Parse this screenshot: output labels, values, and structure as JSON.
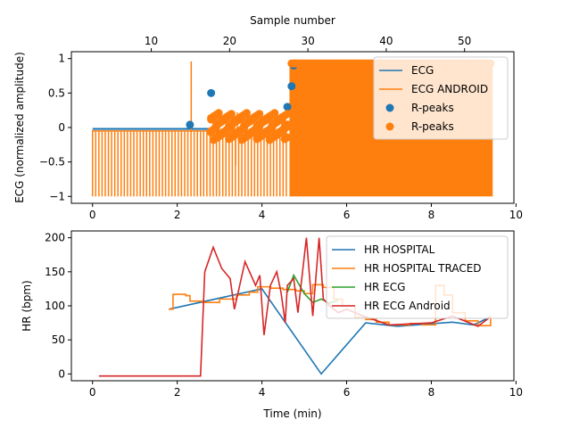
{
  "chart_data": [
    {
      "type": "line",
      "top_axis_label": "Sample number",
      "top_ticks": [
        10,
        20,
        30,
        40,
        50
      ],
      "top_lim": [
        -0.2,
        56.3
      ],
      "xlabel": "",
      "ylabel": "ECG (normalized amplitude)",
      "xlim": [
        -0.5,
        9.95
      ],
      "ylim": [
        -1.1,
        1.1
      ],
      "x_ticks": [
        0,
        2,
        4,
        6,
        8,
        10
      ],
      "y_ticks": [
        -1.0,
        -0.5,
        0.0,
        0.5,
        1.0
      ],
      "legend_position": "top-right",
      "colors": {
        "blue": "#1f77b4",
        "orange": "#ff7f0e"
      },
      "series": [
        {
          "name": "ECG",
          "kind": "line",
          "color": "#1f77b4",
          "points": [
            [
              0,
              -0.02
            ],
            [
              2.8,
              -0.02
            ]
          ]
        },
        {
          "name": "ECG ANDROID",
          "kind": "line",
          "color": "#ff7f0e",
          "spikes_region": {
            "x_start": 0,
            "x_end": 4.6,
            "step": 0.075,
            "baseline": -0.05,
            "low": -1.0
          },
          "dense_region": {
            "x_start": 4.65,
            "x_end": 9.45,
            "low": -1.0,
            "high": 0.95
          },
          "outliers": [
            [
              2.33,
              0.96
            ],
            [
              3.38,
              -0.55
            ],
            [
              3.42,
              0.22
            ],
            [
              4.0,
              0.08
            ]
          ]
        },
        {
          "name": "R-peaks",
          "kind": "scatter",
          "color": "#1f77b4",
          "points": [
            [
              2.8,
              0.5
            ],
            [
              2.3,
              0.04
            ],
            [
              4.6,
              0.3
            ],
            [
              4.7,
              0.6
            ],
            [
              4.75,
              0.9
            ]
          ]
        },
        {
          "name": "R-peaks",
          "kind": "scatter",
          "color": "#ff7f0e",
          "band": {
            "x_start": 2.8,
            "x_end": 4.6,
            "low": -0.25,
            "high": 0.2
          },
          "top_band": {
            "x_start": 4.7,
            "x_end": 9.45,
            "y": 0.93
          }
        }
      ]
    },
    {
      "type": "line",
      "xlabel": "Time (min)",
      "ylabel": "HR (bpm)",
      "xlim": [
        -0.5,
        9.95
      ],
      "ylim": [
        -10,
        210
      ],
      "x_ticks": [
        0,
        2,
        4,
        6,
        8,
        10
      ],
      "y_ticks": [
        0,
        50,
        100,
        150,
        200
      ],
      "legend_position": "top-right",
      "series": [
        {
          "name": "HR HOSPITAL",
          "color": "#1f77b4",
          "points": [
            [
              1.8,
              95
            ],
            [
              4.0,
              125
            ],
            [
              5.4,
              0
            ],
            [
              6.45,
              75
            ],
            [
              7.2,
              70
            ],
            [
              8.5,
              76
            ],
            [
              9.0,
              72
            ],
            [
              9.4,
              84
            ]
          ]
        },
        {
          "name": "HR HOSPITAL TRACED",
          "color": "#ff7f0e",
          "step": true,
          "points": [
            [
              1.8,
              95
            ],
            [
              1.9,
              117
            ],
            [
              2.2,
              115
            ],
            [
              2.3,
              107
            ],
            [
              2.6,
              105
            ],
            [
              3.0,
              110
            ],
            [
              3.4,
              116
            ],
            [
              3.7,
              120
            ],
            [
              3.9,
              128
            ],
            [
              4.2,
              126
            ],
            [
              4.5,
              124
            ],
            [
              4.8,
              122
            ],
            [
              5.0,
              118
            ],
            [
              5.2,
              131
            ],
            [
              5.45,
              127
            ],
            [
              5.7,
              110
            ],
            [
              5.9,
              100
            ],
            [
              6.2,
              83
            ],
            [
              6.45,
              80
            ],
            [
              6.7,
              76
            ],
            [
              7.0,
              72
            ],
            [
              7.5,
              74
            ],
            [
              7.8,
              72
            ],
            [
              8.1,
              130
            ],
            [
              8.3,
              116
            ],
            [
              8.5,
              90
            ],
            [
              8.8,
              78
            ],
            [
              9.1,
              71
            ],
            [
              9.4,
              84
            ]
          ]
        },
        {
          "name": "HR ECG",
          "color": "#2ca02c",
          "points": [
            [
              4.6,
              120
            ],
            [
              4.75,
              145
            ],
            [
              5.0,
              118
            ],
            [
              5.2,
              105
            ],
            [
              5.4,
              110
            ],
            [
              5.6,
              104
            ],
            [
              5.8,
              108
            ]
          ]
        },
        {
          "name": "HR ECG Android",
          "color": "#d62728",
          "points": [
            [
              0.15,
              -3
            ],
            [
              2.55,
              -3
            ],
            [
              2.65,
              150
            ],
            [
              2.85,
              186
            ],
            [
              3.05,
              155
            ],
            [
              3.25,
              140
            ],
            [
              3.35,
              95
            ],
            [
              3.6,
              165
            ],
            [
              3.85,
              130
            ],
            [
              3.95,
              145
            ],
            [
              4.05,
              57
            ],
            [
              4.2,
              130
            ],
            [
              4.35,
              150
            ],
            [
              4.45,
              120
            ],
            [
              4.55,
              75
            ],
            [
              4.6,
              130
            ],
            [
              4.75,
              140
            ],
            [
              4.85,
              90
            ],
            [
              5.05,
              200
            ],
            [
              5.2,
              85
            ],
            [
              5.35,
              200
            ],
            [
              5.45,
              110
            ],
            [
              5.6,
              100
            ],
            [
              5.8,
              90
            ],
            [
              6.0,
              95
            ],
            [
              6.4,
              85
            ],
            [
              7.0,
              72
            ],
            [
              8.0,
              75
            ],
            [
              8.5,
              85
            ],
            [
              9.1,
              70
            ],
            [
              9.4,
              84
            ]
          ]
        }
      ]
    }
  ]
}
